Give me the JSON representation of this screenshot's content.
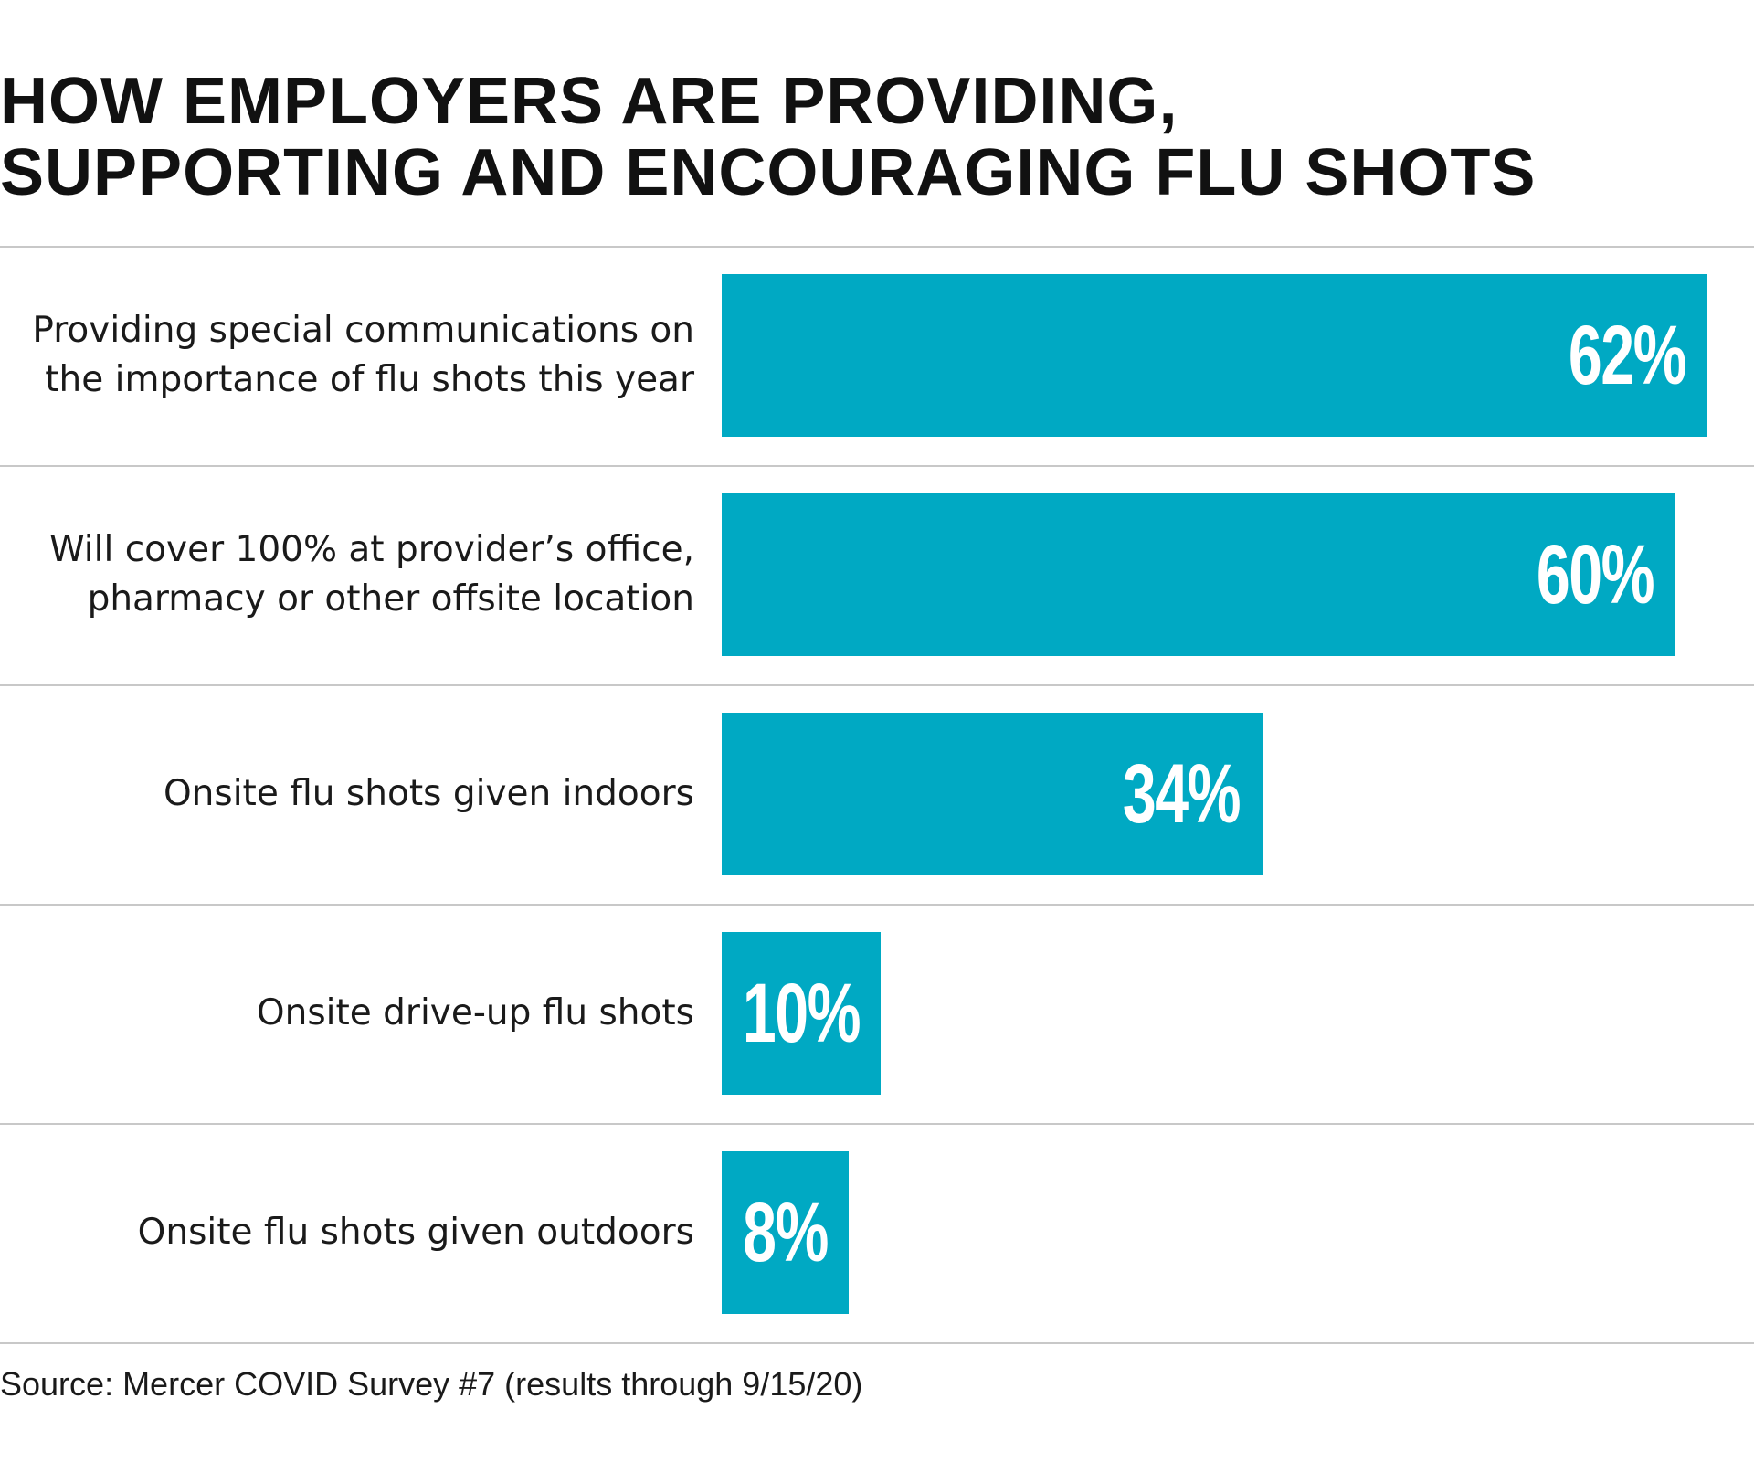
{
  "chart_data": {
    "type": "bar",
    "orientation": "horizontal",
    "title_lines": [
      "HOW EMPLOYERS ARE PROVIDING,",
      "SUPPORTING AND ENCOURAGING FLU SHOTS"
    ],
    "categories": [
      [
        "Providing special communications on",
        "the importance of flu shots this year"
      ],
      [
        "Will cover 100% at provider’s office,",
        "pharmacy or other offsite location"
      ],
      [
        "Onsite flu shots given indoors"
      ],
      [
        "Onsite drive-up flu shots"
      ],
      [
        "Onsite flu shots given outdoors"
      ]
    ],
    "values": [
      62,
      60,
      34,
      10,
      8
    ],
    "value_labels": [
      "62%",
      "60%",
      "34%",
      "10%",
      "8%"
    ],
    "unit": "%",
    "xlim": [
      0,
      100
    ],
    "grid": false,
    "bar_color": "#00a9c3",
    "source": "Source: Mercer COVID Survey #7 (results through 9/15/20)"
  }
}
